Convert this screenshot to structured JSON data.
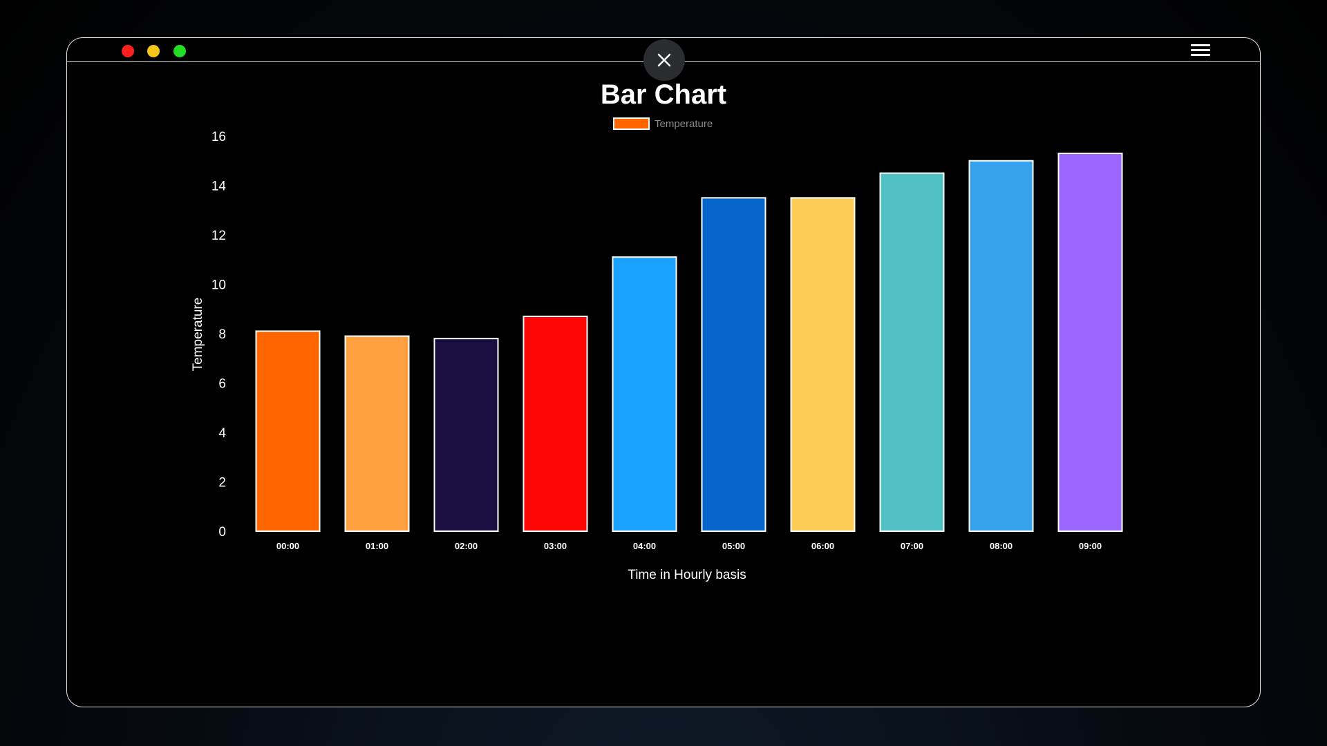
{
  "window": {
    "traffic_lights": [
      {
        "name": "close-window",
        "color": "#ff1f1f"
      },
      {
        "name": "minimize-window",
        "color": "#f5c518"
      },
      {
        "name": "maximize-window",
        "color": "#22dd22"
      }
    ],
    "close_icon": "close-icon",
    "menu_icon": "hamburger-menu-icon"
  },
  "chart_data": {
    "type": "bar",
    "title": "Bar Chart",
    "categories": [
      "00:00",
      "01:00",
      "02:00",
      "03:00",
      "04:00",
      "05:00",
      "06:00",
      "07:00",
      "08:00",
      "09:00"
    ],
    "series": [
      {
        "name": "Temperature",
        "values": [
          8.1,
          7.9,
          7.8,
          8.7,
          11.1,
          13.5,
          13.5,
          14.5,
          15.0,
          15.3
        ]
      }
    ],
    "bar_colors": [
      "#ff6600",
      "#ff9f40",
      "#1a0d42",
      "#ff0606",
      "#1ba1ff",
      "#0566cc",
      "#ffcb57",
      "#4fc1c2",
      "#36a2eb",
      "#9b66ff"
    ],
    "bar_border_color": "#ffffff",
    "legend_color": "#ff6600",
    "xlabel": "Time in Hourly basis",
    "ylabel": "Temperature",
    "ylim": [
      0,
      16
    ],
    "yticks": [
      0,
      2,
      4,
      6,
      8,
      10,
      12,
      14,
      16
    ],
    "grid": false,
    "legend_position": "top"
  }
}
